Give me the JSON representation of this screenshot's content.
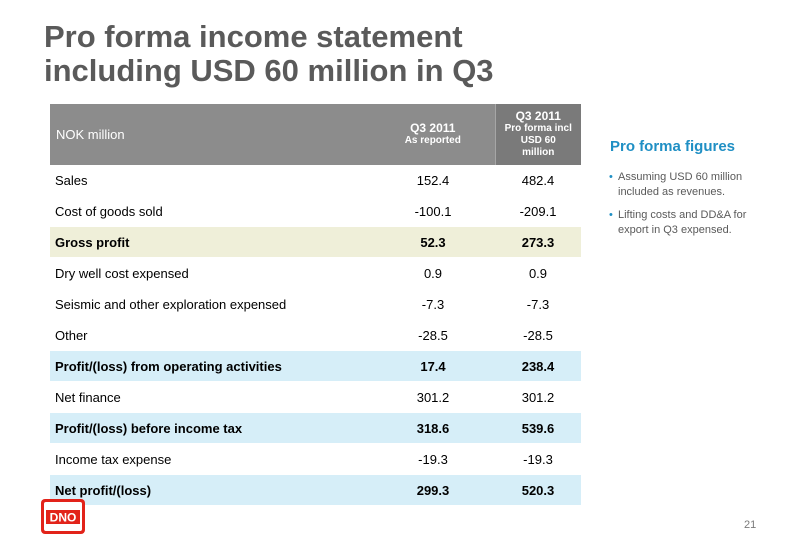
{
  "title": {
    "line1": "Pro forma income statement",
    "line2": "including USD 60 million in Q3"
  },
  "table": {
    "header": {
      "label": "NOK million",
      "col1_line1": "Q3 2011",
      "col1_line2": "As reported",
      "col2_line1": "Q3 2011",
      "col2_line2": "Pro forma incl",
      "col2_line3": "USD 60",
      "col2_line4": "million"
    },
    "rows": [
      {
        "label": "Sales",
        "reported": "152.4",
        "pro_forma": "482.4",
        "style": "normal"
      },
      {
        "label": "Cost of goods sold",
        "reported": "-100.1",
        "pro_forma": "-209.1",
        "style": "normal"
      },
      {
        "label": "Gross profit",
        "reported": "52.3",
        "pro_forma": "273.3",
        "style": "yellow"
      },
      {
        "label": "Dry well cost expensed",
        "reported": "0.9",
        "pro_forma": "0.9",
        "style": "normal"
      },
      {
        "label": "Seismic and other exploration expensed",
        "reported": "-7.3",
        "pro_forma": "-7.3",
        "style": "normal"
      },
      {
        "label": "Other",
        "reported": "-28.5",
        "pro_forma": "-28.5",
        "style": "normal"
      },
      {
        "label": "Profit/(loss) from operating activities",
        "reported": "17.4",
        "pro_forma": "238.4",
        "style": "blue"
      },
      {
        "label": "Net finance",
        "reported": "301.2",
        "pro_forma": "301.2",
        "style": "normal"
      },
      {
        "label": "Profit/(loss) before income tax",
        "reported": "318.6",
        "pro_forma": "539.6",
        "style": "blue"
      },
      {
        "label": "Income tax expense",
        "reported": "-19.3",
        "pro_forma": "-19.3",
        "style": "normal"
      },
      {
        "label": "Net profit/(loss)",
        "reported": "299.3",
        "pro_forma": "520.3",
        "style": "blue"
      }
    ]
  },
  "sidebar": {
    "title": "Pro forma figures",
    "bullets": [
      {
        "dot": "•",
        "text": "Assuming USD 60 million included as revenues."
      },
      {
        "dot": "•",
        "text": "Lifting costs and DD&A for export in Q3 expensed."
      }
    ]
  },
  "logo": {
    "text": "DNO",
    "color": "#e2231a"
  },
  "page_number": "21",
  "colors": {
    "title": "#5a5a5a",
    "header_bg": "#8c8c8c",
    "accent_blue": "#1f8fc4",
    "row_yellow": "#efefd9",
    "row_blue": "#d6eef8"
  }
}
